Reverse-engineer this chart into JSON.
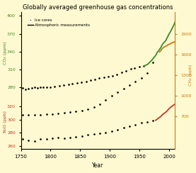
{
  "title": "Globally averaged greenhouse gas concentrations",
  "background_color": "#fef9d0",
  "xlabel": "Year",
  "ylabel_co2": "CO₂ (ppm)",
  "ylabel_n2o": "N₂O (ppb)",
  "ylabel_ch4": "CH₄ (ppb)",
  "co2_color": "#3a8a2a",
  "ch4_color": "#c97a10",
  "n2o_color": "#c0392b",
  "legend_dot_label": "Ice cores",
  "legend_line_label": "Atmospheric measurements",
  "xlim": [
    1750,
    2010
  ],
  "co2_min": 260,
  "co2_max": 400,
  "co2_yticks": [
    280,
    310,
    340,
    370,
    400
  ],
  "ch4_min": 600,
  "ch4_max": 1900,
  "ch4_yticks": [
    700,
    1000,
    1300,
    1600,
    1900
  ],
  "n2o_min": 255,
  "n2o_max": 335,
  "n2o_yticks": [
    260,
    280,
    300,
    320
  ],
  "xticks": [
    1750,
    1800,
    1850,
    1900,
    1950,
    2000
  ],
  "co2_ice_years": [
    1753,
    1758,
    1763,
    1768,
    1773,
    1778,
    1783,
    1788,
    1793,
    1800,
    1807,
    1815,
    1822,
    1830,
    1837,
    1845,
    1852,
    1860,
    1867,
    1875,
    1882,
    1890,
    1897,
    1905,
    1912,
    1920,
    1927,
    1935,
    1942,
    1950,
    1957
  ],
  "co2_ice_vals": [
    279,
    277,
    278,
    279,
    280,
    279,
    280,
    280,
    281,
    281,
    282,
    283,
    284,
    285,
    286,
    287,
    289,
    290,
    292,
    294,
    296,
    297,
    298,
    300,
    302,
    305,
    308,
    311,
    313,
    315,
    316
  ],
  "co2_atm_years": [
    1958,
    1960,
    1962,
    1964,
    1966,
    1968,
    1970,
    1972,
    1974,
    1976,
    1978,
    1980,
    1982,
    1984,
    1986,
    1988,
    1990,
    1992,
    1994,
    1996,
    1998,
    2000,
    2002,
    2004,
    2006,
    2008,
    2010
  ],
  "co2_atm_vals": [
    316,
    317,
    318,
    319,
    321,
    323,
    325,
    327,
    330,
    332,
    335,
    339,
    341,
    344,
    347,
    351,
    354,
    356,
    358,
    362,
    366,
    370,
    373,
    377,
    381,
    385,
    390
  ],
  "ch4_ice_years": [
    1753,
    1763,
    1773,
    1783,
    1793,
    1803,
    1813,
    1823,
    1833,
    1843,
    1853,
    1863,
    1873,
    1883,
    1893,
    1903,
    1913,
    1923,
    1933,
    1943,
    1953,
    1963,
    1973
  ],
  "ch4_ice_vals": [
    722,
    718,
    720,
    722,
    725,
    732,
    740,
    745,
    755,
    768,
    783,
    803,
    833,
    878,
    938,
    998,
    1050,
    1103,
    1153,
    1203,
    1260,
    1330,
    1490
  ],
  "ch4_atm_years": [
    1984,
    1986,
    1988,
    1990,
    1992,
    1994,
    1996,
    1998,
    2000,
    2002,
    2004,
    2006,
    2008,
    2010
  ],
  "ch4_atm_vals": [
    1640,
    1660,
    1683,
    1703,
    1714,
    1722,
    1730,
    1745,
    1751,
    1758,
    1769,
    1775,
    1782,
    1790
  ],
  "n2o_ice_years": [
    1753,
    1763,
    1773,
    1783,
    1793,
    1803,
    1813,
    1823,
    1833,
    1843,
    1853,
    1863,
    1873,
    1883,
    1893,
    1903,
    1913,
    1923,
    1933,
    1943,
    1953,
    1963,
    1973
  ],
  "n2o_ice_vals": [
    270,
    268,
    267,
    270,
    271,
    272,
    273,
    272,
    273,
    274,
    275,
    277,
    278,
    279,
    280,
    282,
    285,
    288,
    290,
    292,
    295,
    297,
    299
  ],
  "n2o_atm_years": [
    1977,
    1980,
    1983,
    1986,
    1989,
    1992,
    1995,
    1998,
    2001,
    2004,
    2007,
    2010
  ],
  "n2o_atm_vals": [
    299,
    301,
    303,
    305,
    308,
    310,
    312,
    315,
    318,
    320,
    322,
    324
  ]
}
